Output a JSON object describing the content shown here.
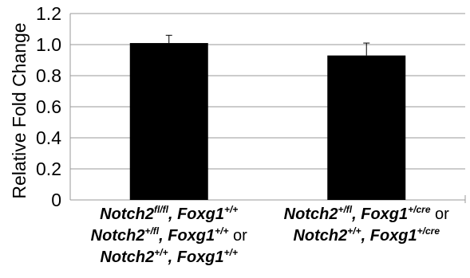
{
  "chart_data": {
    "type": "bar",
    "ylabel": "Relative Fold Change",
    "ylim": [
      0,
      1.2
    ],
    "ytick_step": 0.2,
    "yticks": [
      "0",
      "0.2",
      "0.4",
      "0.6",
      "0.8",
      "1.0",
      "1.2"
    ],
    "grid": true,
    "legend": "none",
    "bar_color": "#000000",
    "categories": [
      [
        [
          {
            "t": "Notch2"
          },
          {
            "t": "fl/fl",
            "sup": true
          },
          {
            "t": ", Foxg1"
          },
          {
            "t": "+/+",
            "sup": true
          }
        ],
        [
          {
            "t": "Notch2"
          },
          {
            "t": "+/fl",
            "sup": true
          },
          {
            "t": ", Foxg1"
          },
          {
            "t": "+/+",
            "sup": true
          },
          {
            "t": " or",
            "plain": true
          }
        ],
        [
          {
            "t": "Notch2"
          },
          {
            "t": "+/+",
            "sup": true
          },
          {
            "t": ", Foxg1"
          },
          {
            "t": "+/+",
            "sup": true
          }
        ]
      ],
      [
        [
          {
            "t": "Notch2"
          },
          {
            "t": "+/fl",
            "sup": true
          },
          {
            "t": ", Foxg1"
          },
          {
            "t": "+/cre",
            "sup": true
          },
          {
            "t": " or",
            "plain": true
          }
        ],
        [
          {
            "t": "Notch2"
          },
          {
            "t": "+/+",
            "sup": true
          },
          {
            "t": ", Foxg1"
          },
          {
            "t": "+/cre",
            "sup": true
          }
        ]
      ]
    ],
    "values": [
      1.01,
      0.93
    ],
    "errors": [
      0.05,
      0.08
    ]
  }
}
